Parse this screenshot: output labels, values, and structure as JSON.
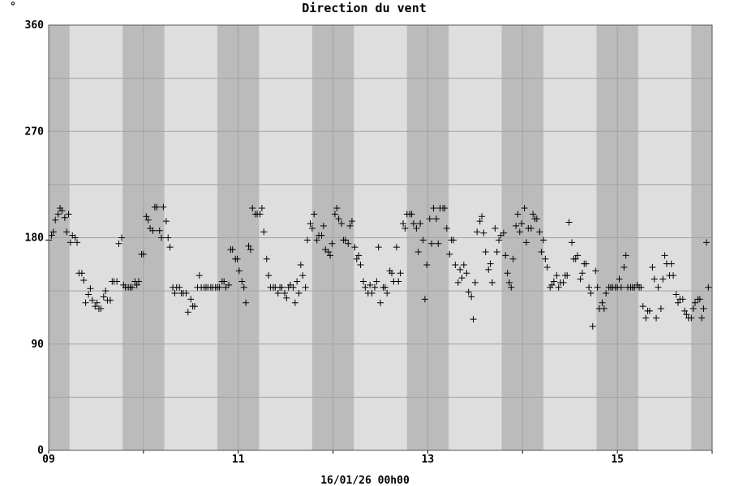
{
  "unit_symbol": "°",
  "chart_data": {
    "type": "scatter",
    "title": "Direction du vent",
    "xlabel": "16/01/26 00h00",
    "ylabel": "",
    "ylim": [
      0,
      360
    ],
    "xlim": [
      9,
      16
    ],
    "y_ticks": [
      "0",
      "90",
      "180",
      "270",
      "360"
    ],
    "y_tick_values": [
      0,
      90,
      180,
      270,
      360
    ],
    "y_grid_values": [
      0,
      45,
      90,
      135,
      180,
      225,
      270,
      315,
      360
    ],
    "x_ticks": [
      "09",
      "11",
      "13",
      "15"
    ],
    "x_tick_values": [
      9,
      11,
      13,
      15
    ],
    "x_grid_values": [
      9,
      10,
      11,
      12,
      13,
      14,
      15,
      16
    ],
    "night_bands": [
      [
        9.0,
        9.22
      ],
      [
        9.78,
        10.22
      ],
      [
        10.78,
        11.22
      ],
      [
        11.78,
        12.22
      ],
      [
        12.78,
        13.22
      ],
      [
        13.78,
        14.22
      ],
      [
        14.78,
        15.22
      ],
      [
        15.78,
        16.0
      ]
    ],
    "grid": true,
    "colors": {
      "day": "#dedede",
      "night": "#bbbbbb",
      "grid": "#a2a2a2",
      "marker": "#000000"
    },
    "marker": "+",
    "series": [
      {
        "name": "",
        "points": [
          [
            9.0,
            178
          ],
          [
            9.03,
            182
          ],
          [
            9.05,
            185
          ],
          [
            9.07,
            195
          ],
          [
            9.1,
            200
          ],
          [
            9.12,
            205
          ],
          [
            9.14,
            203
          ],
          [
            9.17,
            197
          ],
          [
            9.19,
            185
          ],
          [
            9.21,
            200
          ],
          [
            9.23,
            176
          ],
          [
            9.25,
            182
          ],
          [
            9.28,
            180
          ],
          [
            9.3,
            176
          ],
          [
            9.32,
            150
          ],
          [
            9.35,
            150
          ],
          [
            9.37,
            144
          ],
          [
            9.39,
            125
          ],
          [
            9.42,
            132
          ],
          [
            9.44,
            137
          ],
          [
            9.46,
            127
          ],
          [
            9.49,
            122
          ],
          [
            9.51,
            125
          ],
          [
            9.53,
            120
          ],
          [
            9.55,
            120
          ],
          [
            9.58,
            130
          ],
          [
            9.6,
            135
          ],
          [
            9.62,
            127
          ],
          [
            9.65,
            127
          ],
          [
            9.67,
            143
          ],
          [
            9.69,
            143
          ],
          [
            9.72,
            143
          ],
          [
            9.74,
            175
          ],
          [
            9.77,
            180
          ],
          [
            9.79,
            140
          ],
          [
            9.81,
            138
          ],
          [
            9.84,
            138
          ],
          [
            9.86,
            138
          ],
          [
            9.88,
            138
          ],
          [
            9.91,
            143
          ],
          [
            9.93,
            140
          ],
          [
            9.95,
            143
          ],
          [
            9.98,
            166
          ],
          [
            10.0,
            166
          ],
          [
            10.03,
            198
          ],
          [
            10.05,
            195
          ],
          [
            10.07,
            188
          ],
          [
            10.1,
            186
          ],
          [
            10.12,
            206
          ],
          [
            10.14,
            206
          ],
          [
            10.17,
            186
          ],
          [
            10.19,
            180
          ],
          [
            10.21,
            206
          ],
          [
            10.24,
            194
          ],
          [
            10.26,
            180
          ],
          [
            10.28,
            172
          ],
          [
            10.31,
            138
          ],
          [
            10.33,
            133
          ],
          [
            10.35,
            138
          ],
          [
            10.38,
            138
          ],
          [
            10.4,
            133
          ],
          [
            10.42,
            133
          ],
          [
            10.45,
            133
          ],
          [
            10.47,
            117
          ],
          [
            10.5,
            128
          ],
          [
            10.52,
            122
          ],
          [
            10.54,
            122
          ],
          [
            10.57,
            138
          ],
          [
            10.59,
            148
          ],
          [
            10.61,
            138
          ],
          [
            10.64,
            138
          ],
          [
            10.66,
            138
          ],
          [
            10.68,
            138
          ],
          [
            10.71,
            138
          ],
          [
            10.73,
            138
          ],
          [
            10.76,
            138
          ],
          [
            10.78,
            138
          ],
          [
            10.8,
            138
          ],
          [
            10.83,
            143
          ],
          [
            10.85,
            143
          ],
          [
            10.87,
            138
          ],
          [
            10.9,
            140
          ],
          [
            10.92,
            170
          ],
          [
            10.94,
            170
          ],
          [
            10.97,
            162
          ],
          [
            10.99,
            162
          ],
          [
            11.01,
            152
          ],
          [
            11.04,
            143
          ],
          [
            11.06,
            138
          ],
          [
            11.08,
            125
          ],
          [
            11.11,
            173
          ],
          [
            11.13,
            170
          ],
          [
            11.15,
            205
          ],
          [
            11.18,
            200
          ],
          [
            11.2,
            200
          ],
          [
            11.23,
            200
          ],
          [
            11.25,
            205
          ],
          [
            11.27,
            185
          ],
          [
            11.3,
            162
          ],
          [
            11.32,
            148
          ],
          [
            11.34,
            138
          ],
          [
            11.37,
            138
          ],
          [
            11.39,
            138
          ],
          [
            11.42,
            133
          ],
          [
            11.44,
            138
          ],
          [
            11.46,
            138
          ],
          [
            11.49,
            133
          ],
          [
            11.51,
            129
          ],
          [
            11.53,
            138
          ],
          [
            11.55,
            140
          ],
          [
            11.58,
            138
          ],
          [
            11.6,
            125
          ],
          [
            11.62,
            143
          ],
          [
            11.64,
            133
          ],
          [
            11.66,
            157
          ],
          [
            11.68,
            148
          ],
          [
            11.71,
            138
          ],
          [
            11.73,
            178
          ],
          [
            11.76,
            192
          ],
          [
            11.78,
            188
          ],
          [
            11.8,
            200
          ],
          [
            11.83,
            178
          ],
          [
            11.85,
            182
          ],
          [
            11.88,
            182
          ],
          [
            11.9,
            190
          ],
          [
            11.92,
            170
          ],
          [
            11.95,
            168
          ],
          [
            11.97,
            165
          ],
          [
            11.99,
            175
          ],
          [
            12.02,
            200
          ],
          [
            12.04,
            205
          ],
          [
            12.06,
            196
          ],
          [
            12.09,
            192
          ],
          [
            12.11,
            178
          ],
          [
            12.13,
            178
          ],
          [
            12.16,
            175
          ],
          [
            12.18,
            190
          ],
          [
            12.2,
            194
          ],
          [
            12.23,
            172
          ],
          [
            12.25,
            162
          ],
          [
            12.27,
            165
          ],
          [
            12.29,
            157
          ],
          [
            12.32,
            143
          ],
          [
            12.34,
            138
          ],
          [
            12.37,
            133
          ],
          [
            12.39,
            140
          ],
          [
            12.41,
            133
          ],
          [
            12.44,
            138
          ],
          [
            12.46,
            143
          ],
          [
            12.48,
            172
          ],
          [
            12.5,
            125
          ],
          [
            12.53,
            138
          ],
          [
            12.55,
            138
          ],
          [
            12.57,
            133
          ],
          [
            12.6,
            152
          ],
          [
            12.62,
            150
          ],
          [
            12.64,
            143
          ],
          [
            12.67,
            172
          ],
          [
            12.69,
            143
          ],
          [
            12.71,
            150
          ],
          [
            12.74,
            192
          ],
          [
            12.76,
            188
          ],
          [
            12.78,
            200
          ],
          [
            12.81,
            200
          ],
          [
            12.83,
            200
          ],
          [
            12.85,
            192
          ],
          [
            12.88,
            188
          ],
          [
            12.9,
            168
          ],
          [
            12.92,
            192
          ],
          [
            12.95,
            178
          ],
          [
            12.97,
            128
          ],
          [
            12.99,
            157
          ],
          [
            13.02,
            196
          ],
          [
            13.04,
            175
          ],
          [
            13.06,
            205
          ],
          [
            13.09,
            196
          ],
          [
            13.11,
            175
          ],
          [
            13.13,
            205
          ],
          [
            13.16,
            205
          ],
          [
            13.18,
            205
          ],
          [
            13.2,
            188
          ],
          [
            13.23,
            166
          ],
          [
            13.25,
            178
          ],
          [
            13.27,
            178
          ],
          [
            13.29,
            157
          ],
          [
            13.32,
            142
          ],
          [
            13.34,
            153
          ],
          [
            13.36,
            146
          ],
          [
            13.38,
            157
          ],
          [
            13.41,
            150
          ],
          [
            13.43,
            134
          ],
          [
            13.46,
            130
          ],
          [
            13.48,
            111
          ],
          [
            13.5,
            142
          ],
          [
            13.52,
            185
          ],
          [
            13.55,
            194
          ],
          [
            13.57,
            198
          ],
          [
            13.59,
            184
          ],
          [
            13.61,
            168
          ],
          [
            13.64,
            153
          ],
          [
            13.66,
            158
          ],
          [
            13.68,
            142
          ],
          [
            13.71,
            188
          ],
          [
            13.73,
            168
          ],
          [
            13.75,
            178
          ],
          [
            13.77,
            182
          ],
          [
            13.8,
            184
          ],
          [
            13.82,
            165
          ],
          [
            13.84,
            150
          ],
          [
            13.86,
            142
          ],
          [
            13.88,
            138
          ],
          [
            13.9,
            162
          ],
          [
            13.93,
            190
          ],
          [
            13.95,
            200
          ],
          [
            13.97,
            185
          ],
          [
            13.99,
            192
          ],
          [
            14.02,
            205
          ],
          [
            14.04,
            176
          ],
          [
            14.06,
            188
          ],
          [
            14.09,
            188
          ],
          [
            14.11,
            200
          ],
          [
            14.13,
            196
          ],
          [
            14.15,
            196
          ],
          [
            14.18,
            185
          ],
          [
            14.2,
            168
          ],
          [
            14.22,
            178
          ],
          [
            14.24,
            162
          ],
          [
            14.26,
            155
          ],
          [
            14.29,
            138
          ],
          [
            14.31,
            140
          ],
          [
            14.33,
            143
          ],
          [
            14.36,
            148
          ],
          [
            14.38,
            138
          ],
          [
            14.4,
            142
          ],
          [
            14.43,
            142
          ],
          [
            14.45,
            148
          ],
          [
            14.47,
            148
          ],
          [
            14.49,
            193
          ],
          [
            14.52,
            176
          ],
          [
            14.54,
            162
          ],
          [
            14.56,
            162
          ],
          [
            14.58,
            165
          ],
          [
            14.61,
            145
          ],
          [
            14.63,
            150
          ],
          [
            14.65,
            158
          ],
          [
            14.67,
            158
          ],
          [
            14.7,
            138
          ],
          [
            14.72,
            133
          ],
          [
            14.74,
            105
          ],
          [
            14.77,
            152
          ],
          [
            14.79,
            138
          ],
          [
            14.81,
            120
          ],
          [
            14.84,
            125
          ],
          [
            14.86,
            120
          ],
          [
            14.88,
            133
          ],
          [
            14.91,
            138
          ],
          [
            14.93,
            138
          ],
          [
            14.95,
            138
          ],
          [
            14.98,
            138
          ],
          [
            15.0,
            138
          ],
          [
            15.02,
            145
          ],
          [
            15.04,
            138
          ],
          [
            15.07,
            155
          ],
          [
            15.09,
            165
          ],
          [
            15.11,
            138
          ],
          [
            15.14,
            138
          ],
          [
            15.16,
            138
          ],
          [
            15.18,
            138
          ],
          [
            15.21,
            140
          ],
          [
            15.23,
            138
          ],
          [
            15.25,
            138
          ],
          [
            15.27,
            122
          ],
          [
            15.3,
            112
          ],
          [
            15.32,
            118
          ],
          [
            15.34,
            118
          ],
          [
            15.37,
            155
          ],
          [
            15.39,
            145
          ],
          [
            15.41,
            112
          ],
          [
            15.43,
            138
          ],
          [
            15.46,
            120
          ],
          [
            15.48,
            145
          ],
          [
            15.5,
            165
          ],
          [
            15.52,
            158
          ],
          [
            15.55,
            148
          ],
          [
            15.57,
            158
          ],
          [
            15.59,
            148
          ],
          [
            15.62,
            132
          ],
          [
            15.64,
            125
          ],
          [
            15.66,
            128
          ],
          [
            15.69,
            128
          ],
          [
            15.71,
            118
          ],
          [
            15.73,
            115
          ],
          [
            15.75,
            112
          ],
          [
            15.78,
            112
          ],
          [
            15.8,
            120
          ],
          [
            15.82,
            125
          ],
          [
            15.85,
            128
          ],
          [
            15.87,
            128
          ],
          [
            15.89,
            112
          ],
          [
            15.91,
            120
          ],
          [
            15.94,
            176
          ],
          [
            15.96,
            138
          ]
        ]
      }
    ]
  }
}
